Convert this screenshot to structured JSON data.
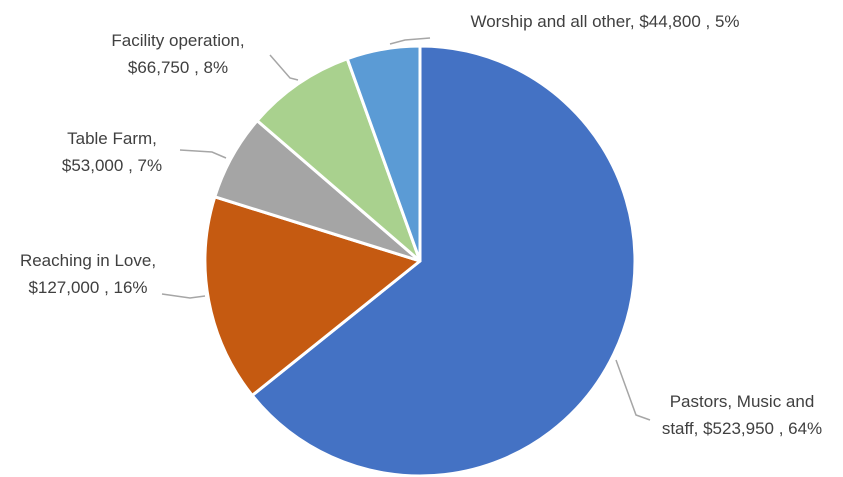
{
  "chart_data": {
    "type": "pie",
    "title": "",
    "slices": [
      {
        "category": "Pastors, Music and staff",
        "value": 523950,
        "value_label": "$523,950",
        "percent_label": "64%",
        "color": "#4472C4"
      },
      {
        "category": "Reaching in Love",
        "value": 127000,
        "value_label": "$127,000",
        "percent_label": "16%",
        "color": "#C55A11"
      },
      {
        "category": "Table Farm",
        "value": 53000,
        "value_label": "$53,000",
        "percent_label": "7%",
        "color": "#A5A5A5"
      },
      {
        "category": "Facility operation",
        "value": 66750,
        "value_label": "$66,750",
        "percent_label": "8%",
        "color": "#A9D18E"
      },
      {
        "category": "Worship and all other",
        "value": 44800,
        "value_label": "$44,800",
        "percent_label": "5%",
        "color": "#5B9BD5"
      }
    ],
    "data_labels": [
      {
        "lines": [
          "Pastors, Music and",
          "staff,  $523,950 , 64%"
        ]
      },
      {
        "lines": [
          "Reaching in Love,",
          "$127,000 , 16%"
        ]
      },
      {
        "lines": [
          "Table Farm,",
          "$53,000 , 7%"
        ]
      },
      {
        "lines": [
          "Facility operation,",
          "$66,750 , 8%"
        ]
      },
      {
        "lines": [
          "Worship and all other,  $44,800 , 5%"
        ]
      }
    ],
    "legend": "none",
    "start_angle": "12 o'clock",
    "direction": "clockwise",
    "slice_border_color": "#FFFFFF",
    "leader_line_color": "#A6A6A6",
    "label_text_color": "#404040"
  }
}
